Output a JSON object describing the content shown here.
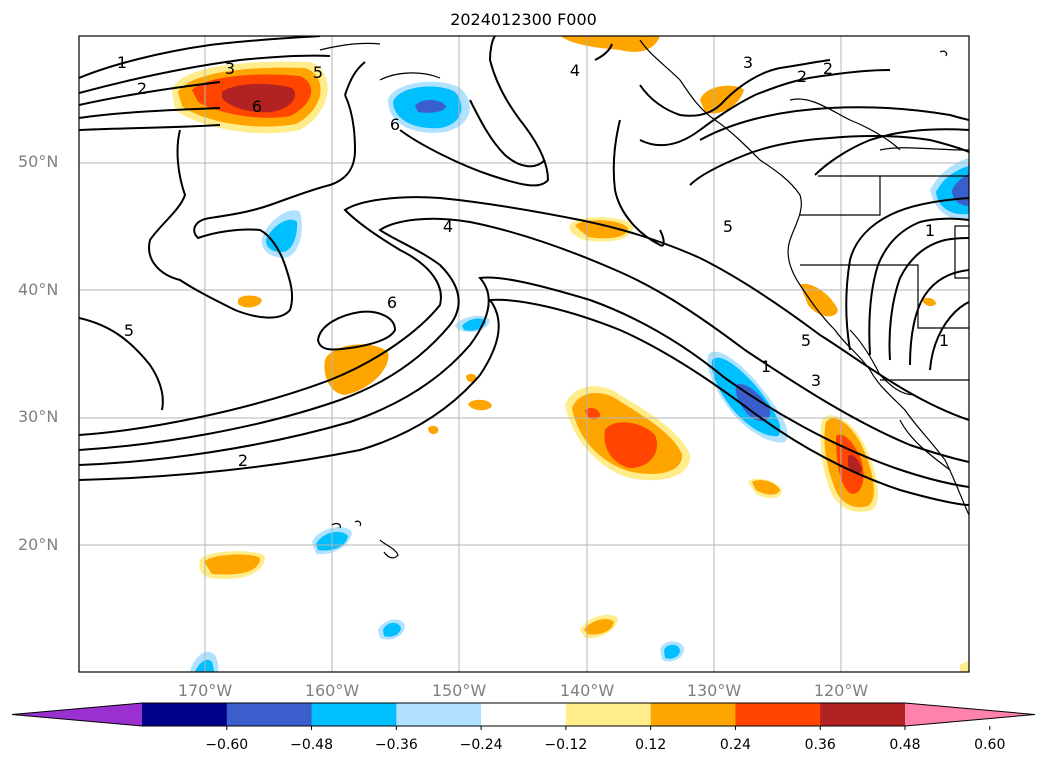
{
  "title": "2024012300 F000",
  "lat_labels": [
    {
      "text": "50°N",
      "lat": 50
    },
    {
      "text": "40°N",
      "lat": 40
    },
    {
      "text": "30°N",
      "lat": 30
    },
    {
      "text": "20°N",
      "lat": 20
    }
  ],
  "lon_labels": [
    {
      "text": "170°W",
      "lon": -170
    },
    {
      "text": "160°W",
      "lon": -160
    },
    {
      "text": "150°W",
      "lon": -150
    },
    {
      "text": "140°W",
      "lon": -140
    },
    {
      "text": "130°W",
      "lon": -130
    },
    {
      "text": "120°W",
      "lon": -120
    }
  ],
  "colorbar": {
    "ticks": [
      "−0.60",
      "−0.48",
      "−0.36",
      "−0.24",
      "−0.12",
      "0.12",
      "0.24",
      "0.36",
      "0.48",
      "0.60"
    ],
    "colors": [
      "#9b30d0",
      "#00008b",
      "#3a5fcd",
      "#00bfff",
      "#b0e2ff",
      "#ffffff",
      "#ffec8b",
      "#ffa500",
      "#ff4500",
      "#b22222",
      "#ff82ab"
    ]
  },
  "contour_labels": [
    "1",
    "2",
    "3",
    "5",
    "6",
    "4",
    "6",
    "4",
    "3",
    "2",
    "2",
    "5",
    "5",
    "1",
    "3",
    "5",
    "2",
    "1",
    "1"
  ]
}
